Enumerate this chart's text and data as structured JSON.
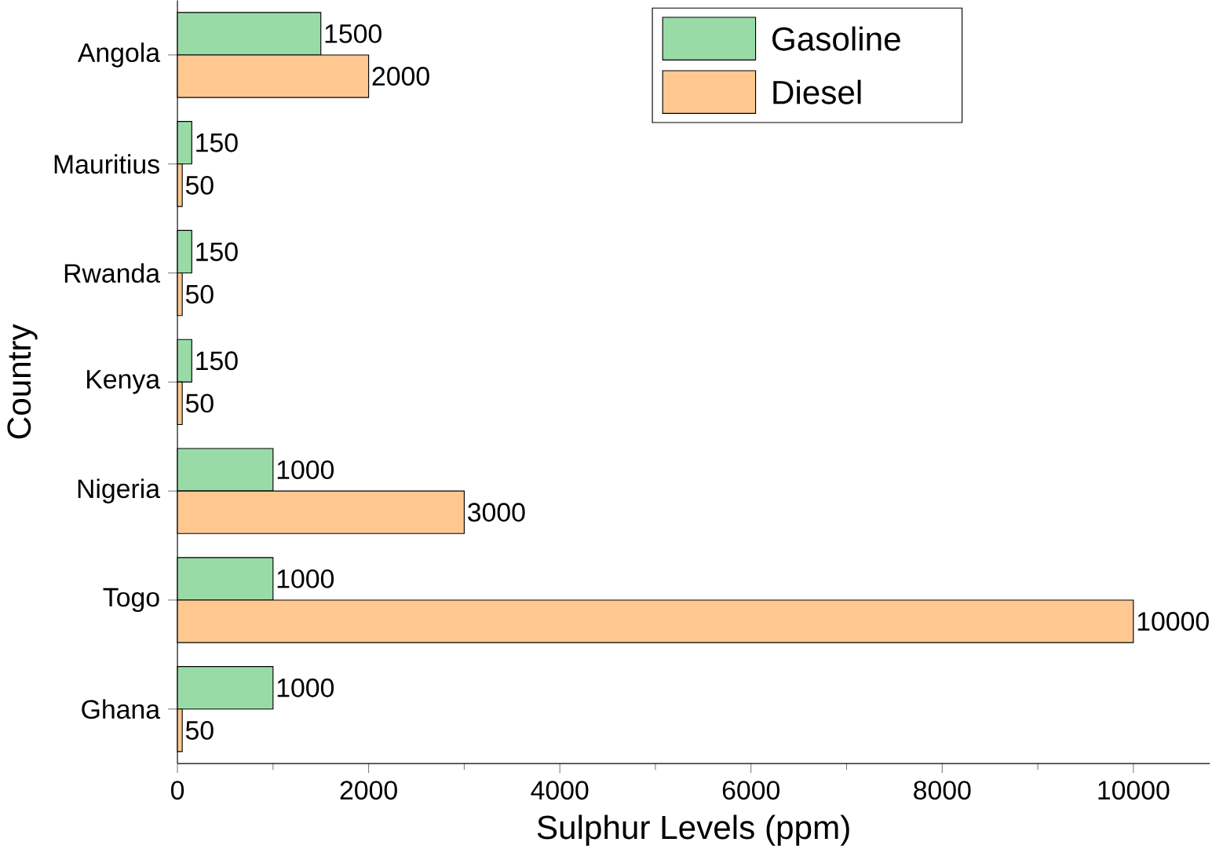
{
  "chart_data": {
    "type": "bar",
    "orientation": "horizontal",
    "xlabel": "Sulphur Levels (ppm)",
    "ylabel": "Country",
    "categories": [
      "Angola",
      "Mauritius",
      "Rwanda",
      "Kenya",
      "Nigeria",
      "Togo",
      "Ghana"
    ],
    "series": [
      {
        "name": "Gasoline",
        "color": "#98dba6",
        "values": [
          1500,
          150,
          150,
          150,
          1000,
          1000,
          1000
        ]
      },
      {
        "name": "Diesel",
        "color": "#ffc891",
        "values": [
          2000,
          50,
          50,
          50,
          3000,
          10000,
          50
        ]
      }
    ],
    "xlim": [
      0,
      10800
    ],
    "xticks": [
      0,
      2000,
      4000,
      6000,
      8000,
      10000
    ],
    "data_labels": true,
    "legend": "top right",
    "grid": false
  }
}
